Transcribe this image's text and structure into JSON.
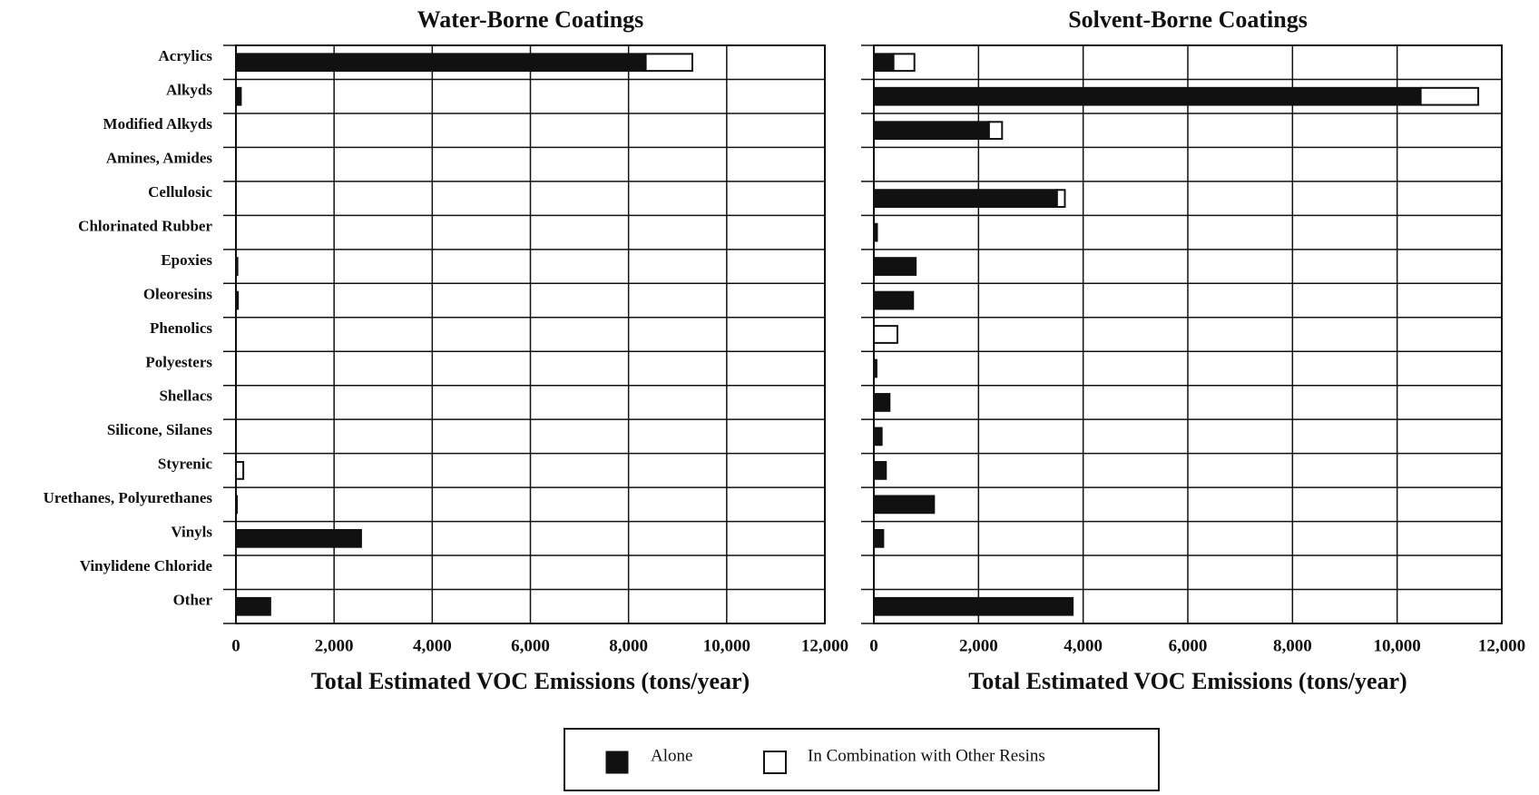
{
  "chart_data": [
    {
      "type": "bar",
      "orientation": "horizontal",
      "stacked": true,
      "title": "Water-Borne Coatings",
      "xlabel": "Total Estimated VOC Emissions (tons/year)",
      "categories": [
        "Acrylics",
        "Alkyds",
        "Modified Alkyds",
        "Amines, Amides",
        "Cellulosic",
        "Chlorinated Rubber",
        "Epoxies",
        "Oleoresins",
        "Phenolics",
        "Polyesters",
        "Shellacs",
        "Silicone, Silanes",
        "Styrenic",
        "Urethanes, Polyurethanes",
        "Vinyls",
        "Vinylidene Chloride",
        "Other"
      ],
      "series": [
        {
          "name": "Alone",
          "color": "#111111",
          "values": [
            8350,
            100,
            0,
            0,
            0,
            0,
            30,
            40,
            0,
            0,
            0,
            0,
            0,
            20,
            2550,
            0,
            700
          ]
        },
        {
          "name": "In Combination with Other Resins",
          "color": "#ffffff",
          "values": [
            950,
            0,
            0,
            0,
            0,
            0,
            0,
            0,
            0,
            0,
            0,
            0,
            150,
            0,
            0,
            0,
            0
          ]
        }
      ],
      "xlim": [
        0,
        12000
      ],
      "xticks": [
        0,
        {
          "value": 2000,
          "label": "2,000"
        },
        {
          "value": 4000,
          "label": "4,000"
        },
        {
          "value": 6000,
          "label": "6,000"
        },
        {
          "value": 8000,
          "label": "8,000"
        },
        {
          "value": 10000,
          "label": "10,000"
        },
        {
          "value": 12000,
          "label": "12,000"
        }
      ],
      "grid": true
    },
    {
      "type": "bar",
      "orientation": "horizontal",
      "stacked": true,
      "title": "Solvent-Borne Coatings",
      "xlabel": "Total Estimated VOC Emissions (tons/year)",
      "series": [
        {
          "name": "Alone",
          "color": "#111111",
          "values": [
            375,
            10450,
            2200,
            0,
            3500,
            60,
            800,
            750,
            0,
            50,
            300,
            150,
            230,
            1150,
            180,
            0,
            3800
          ]
        },
        {
          "name": "In Combination with Other Resins",
          "color": "#ffffff",
          "values": [
            400,
            1100,
            250,
            0,
            150,
            0,
            0,
            0,
            450,
            0,
            0,
            0,
            0,
            0,
            0,
            0,
            0
          ]
        }
      ],
      "xlim": [
        0,
        12000
      ],
      "xticks": [
        0,
        {
          "value": 2000,
          "label": "2,000"
        },
        {
          "value": 4000,
          "label": "4,000"
        },
        {
          "value": 6000,
          "label": "6,000"
        },
        {
          "value": 8000,
          "label": "8,000"
        },
        {
          "value": 10000,
          "label": "10,000"
        },
        {
          "value": 12000,
          "label": "12,000"
        }
      ],
      "grid": true
    }
  ]
}
